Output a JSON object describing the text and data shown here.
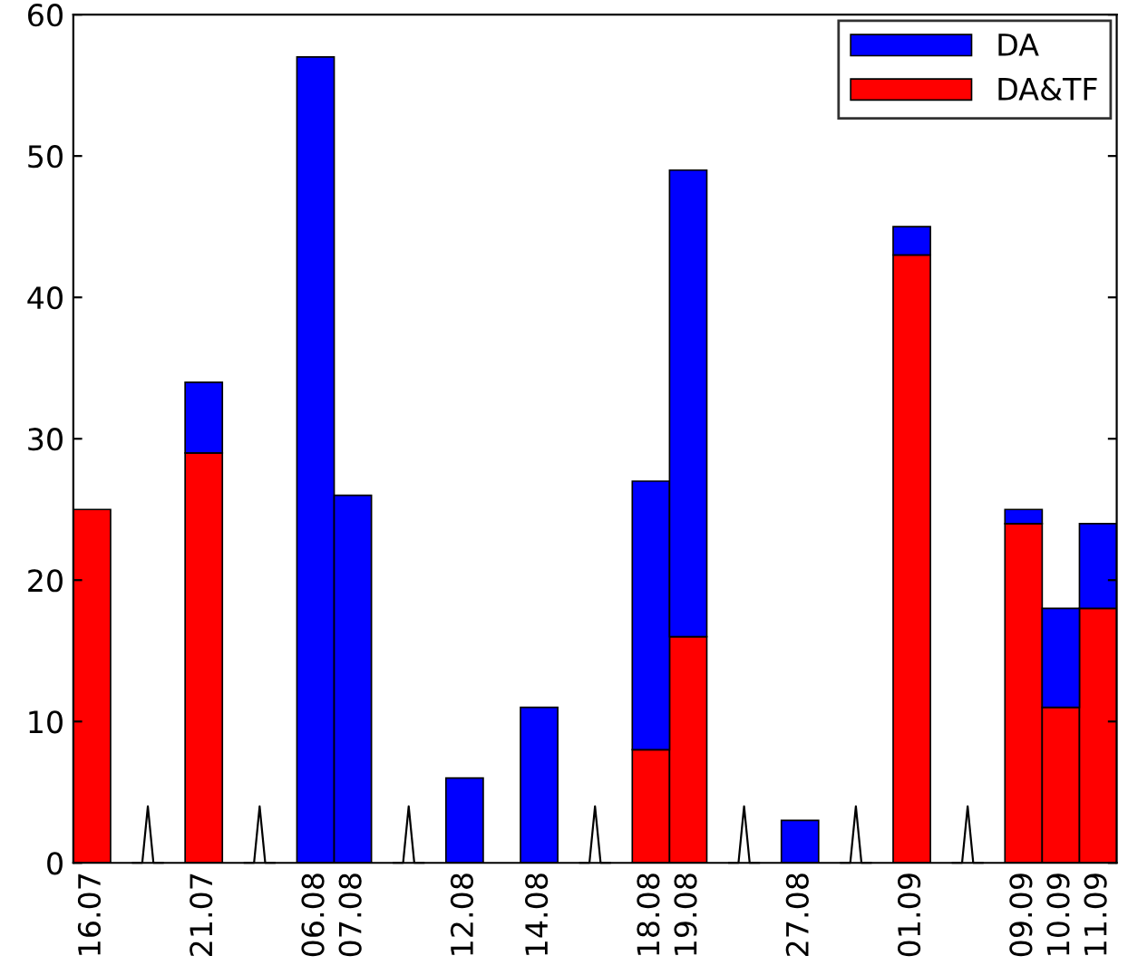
{
  "chart_data": {
    "type": "bar",
    "stacked": true,
    "categories": [
      "16.07",
      null,
      null,
      "21.07",
      null,
      null,
      "06.08",
      "07.08",
      null,
      null,
      "12.08",
      null,
      "14.08",
      null,
      null,
      "18.08",
      "19.08",
      null,
      null,
      "27.08",
      null,
      null,
      "01.09",
      null,
      null,
      "09.09",
      "10.09",
      "11.09"
    ],
    "series": [
      {
        "name": "DA&TF",
        "color": "#ff0000",
        "values": [
          25,
          null,
          null,
          29,
          null,
          null,
          null,
          null,
          null,
          null,
          null,
          null,
          null,
          null,
          null,
          8,
          16,
          null,
          null,
          null,
          null,
          null,
          43,
          null,
          null,
          24,
          11,
          18
        ]
      },
      {
        "name": "DA",
        "color": "#0000ff",
        "values": [
          null,
          null,
          null,
          5,
          null,
          null,
          57,
          26,
          null,
          null,
          6,
          null,
          11,
          null,
          null,
          19,
          33,
          null,
          null,
          3,
          null,
          null,
          2,
          null,
          null,
          1,
          7,
          6
        ]
      }
    ],
    "ylim": [
      0,
      60
    ],
    "yticks": [
      0,
      10,
      20,
      30,
      40,
      50,
      60
    ],
    "grid": false,
    "legend": "top right"
  }
}
